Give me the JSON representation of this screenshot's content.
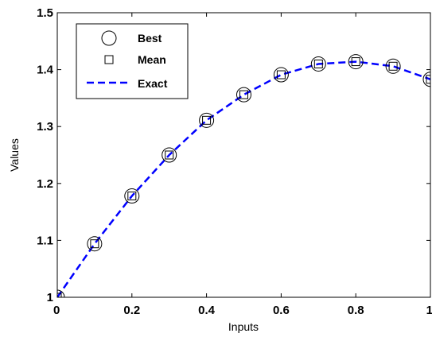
{
  "chart_data": {
    "type": "line",
    "title": "",
    "xlabel": "Inputs",
    "ylabel": "Values",
    "xlim": [
      0,
      1
    ],
    "ylim": [
      1,
      1.5
    ],
    "xticks": [
      0,
      0.2,
      0.4,
      0.6,
      0.8,
      1
    ],
    "yticks": [
      1,
      1.1,
      1.2,
      1.3,
      1.4,
      1.5
    ],
    "xtick_labels": [
      "0",
      "0.2",
      "0.4",
      "0.6",
      "0.8",
      "1"
    ],
    "ytick_labels": [
      "1",
      "1.1",
      "1.2",
      "1.3",
      "1.4",
      "1.5"
    ],
    "grid": false,
    "legend_position": "top-left",
    "x": [
      0,
      0.1,
      0.2,
      0.3,
      0.4,
      0.5,
      0.6,
      0.7,
      0.8,
      0.9,
      1.0
    ],
    "series": [
      {
        "name": "Best",
        "marker": "circle",
        "color": "#000000",
        "values": [
          1.0,
          1.094,
          1.178,
          1.25,
          1.311,
          1.356,
          1.391,
          1.41,
          1.414,
          1.406,
          1.383
        ]
      },
      {
        "name": "Mean",
        "marker": "square",
        "color": "#000000",
        "values": [
          1.0,
          1.094,
          1.178,
          1.25,
          1.311,
          1.356,
          1.391,
          1.41,
          1.414,
          1.406,
          1.383
        ]
      },
      {
        "name": "Exact",
        "line": "dashed",
        "color": "#0000ff",
        "values": [
          1.0,
          1.094,
          1.178,
          1.25,
          1.311,
          1.356,
          1.391,
          1.41,
          1.414,
          1.406,
          1.383
        ]
      }
    ]
  }
}
